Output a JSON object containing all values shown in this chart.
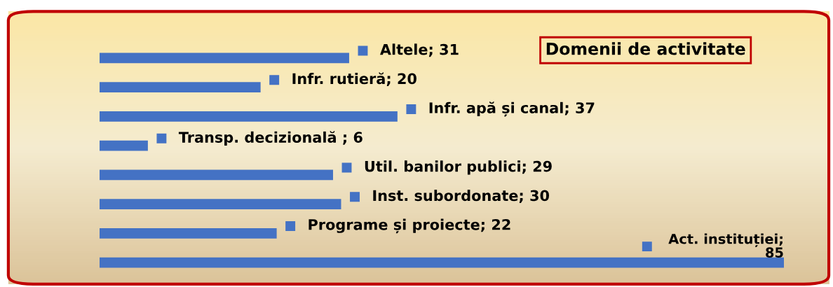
{
  "chart_data": {
    "type": "bar",
    "orientation": "horizontal",
    "title": "Domenii de activitate",
    "categories": [
      null,
      null,
      null,
      null,
      null,
      null,
      null,
      null
    ],
    "values": [
      31,
      20,
      37,
      6,
      29,
      30,
      22,
      85
    ],
    "color": "#4472c4",
    "value_labels": [
      "Altele; 31",
      "Infr. rutieră; 20",
      "Infr. apă și canal; 37",
      "Transp. decizională ; 6",
      "Util. banilor publici; 29",
      "Inst. subordonate; 30",
      "Programe și proiecte; 22",
      "Act. instituției; 85"
    ]
  }
}
